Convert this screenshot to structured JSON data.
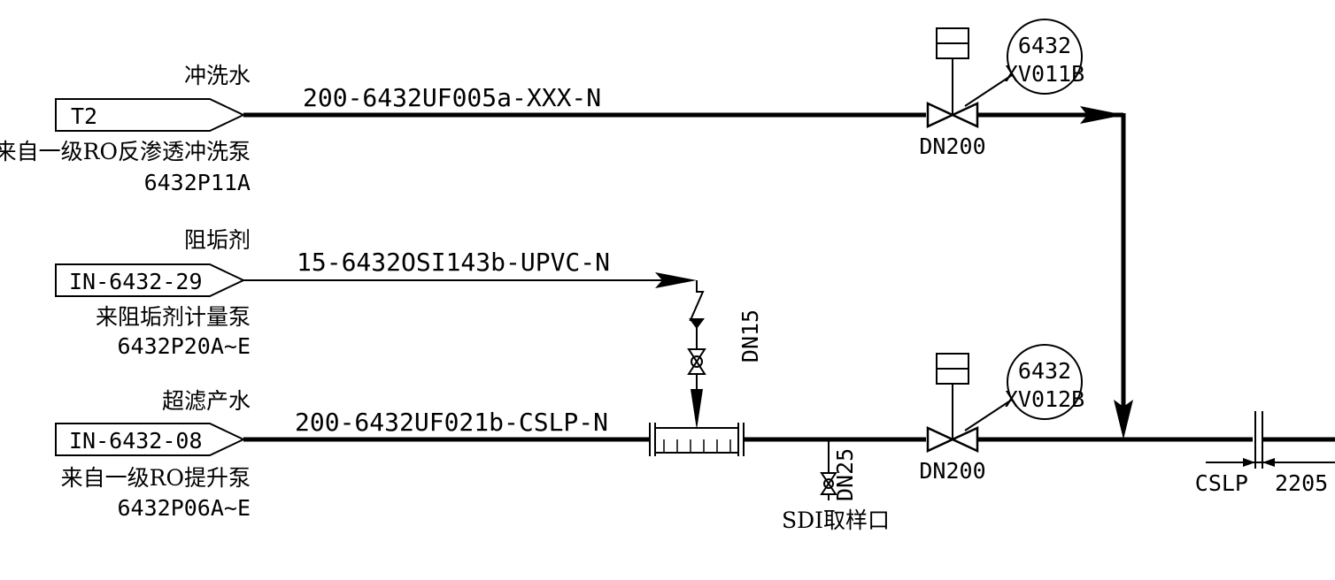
{
  "lines": {
    "flush": {
      "label_cn": "冲洗水",
      "tag": "T2",
      "source_cn": "来自一级RO反渗透冲洗泵",
      "source_equip": "6432P11A",
      "pipe_spec": "200-6432UF005a-XXX-N",
      "valve_size": "DN200",
      "valve_instr_line1": "6432",
      "valve_instr_line2": "XV011B"
    },
    "antiscalant": {
      "label_cn": "阻垢剂",
      "tag": "IN-6432-29",
      "source_cn": "来阻垢剂计量泵",
      "source_equip": "6432P20A~E",
      "pipe_spec": "15-6432OSI143b-UPVC-N",
      "branch_size": "DN15"
    },
    "product": {
      "label_cn": "超滤产水",
      "tag": "IN-6432-08",
      "source_cn": "来自一级RO提升泵",
      "source_equip": "6432P06A~E",
      "pipe_spec": "200-6432UF021b-CSLP-N",
      "sample_size": "DN25",
      "sample_label": "SDI取样口",
      "valve_size": "DN200",
      "valve_instr_line1": "6432",
      "valve_instr_line2": "XV012B"
    }
  },
  "spec_break": {
    "left": "CSLP",
    "right": "2205"
  }
}
